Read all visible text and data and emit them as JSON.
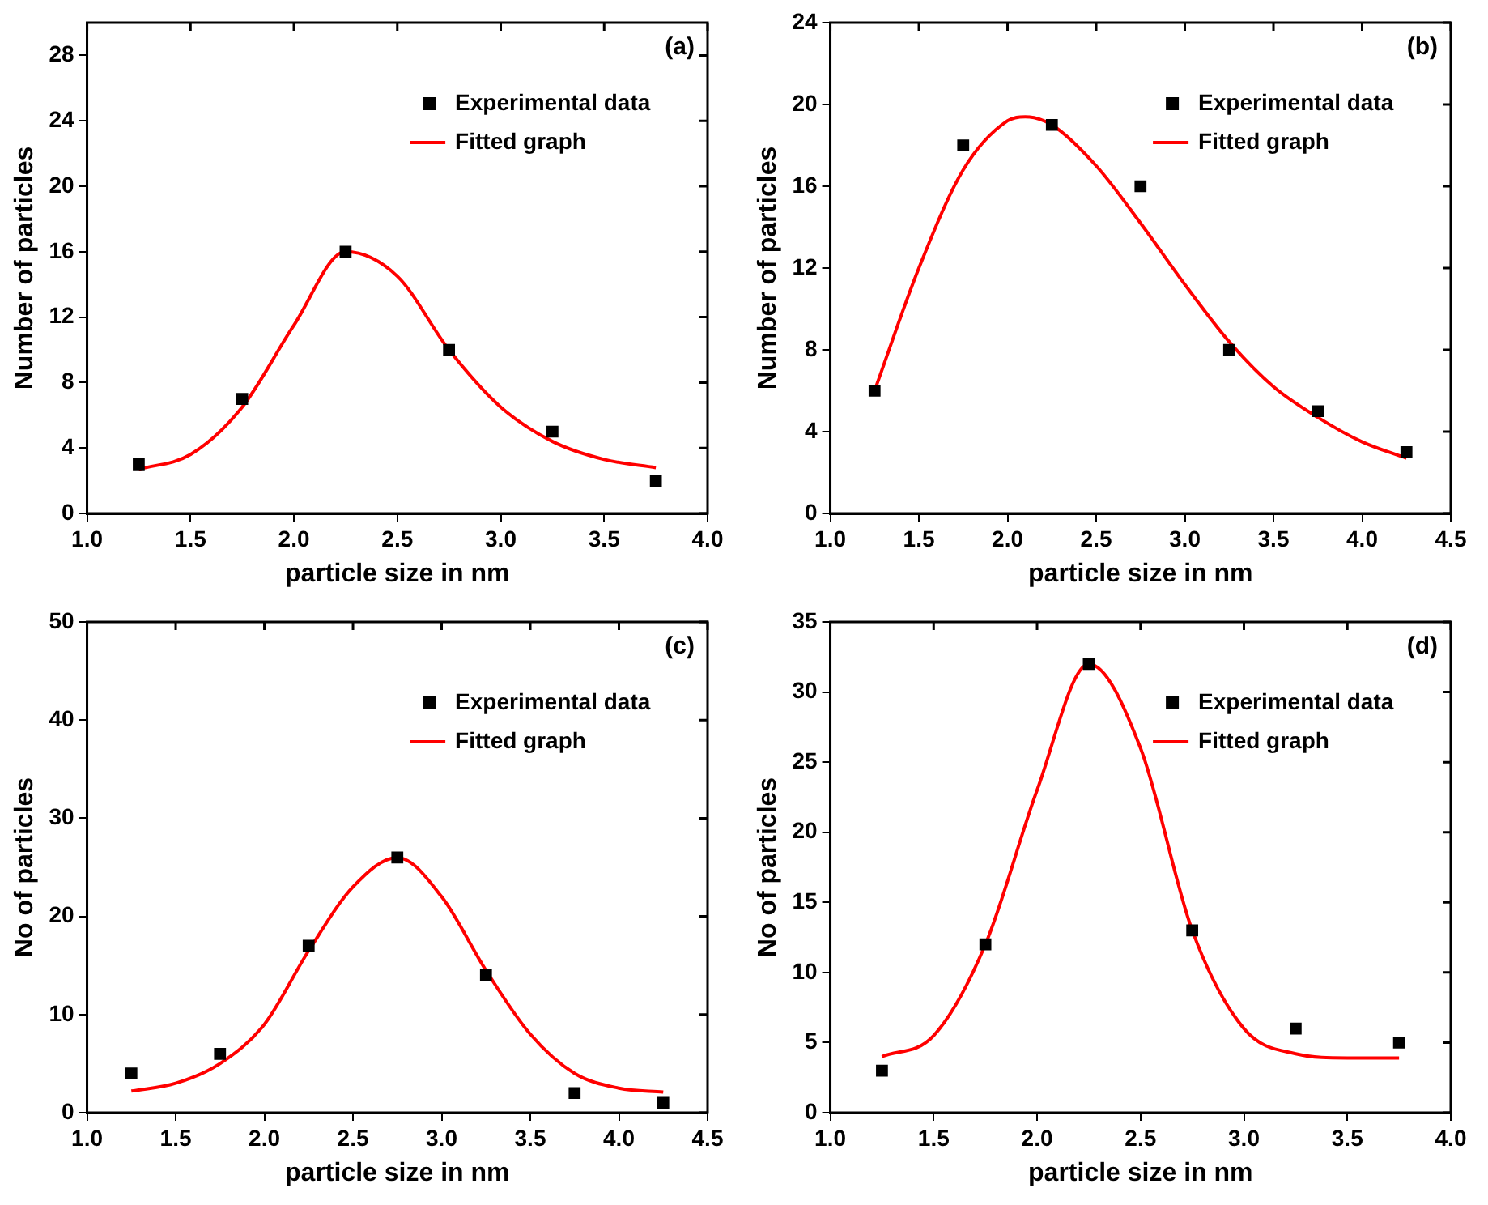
{
  "chart_data": [
    {
      "type": "scatter",
      "xlabel": "particle size in nm",
      "ylabel": "Number of particles",
      "annotations": [
        "(a)"
      ],
      "xlim": [
        1.0,
        4.0
      ],
      "xticks": [
        {
          "value": 1,
          "label": "1.0"
        },
        1.5,
        {
          "value": 2,
          "label": "2.0"
        },
        2.5,
        {
          "value": 3,
          "label": "3.0"
        },
        3.5,
        {
          "value": 4,
          "label": "4.0"
        }
      ],
      "ylim": [
        0,
        30
      ],
      "yticks": [
        0,
        4,
        8,
        12,
        16,
        20,
        24,
        28
      ],
      "legend": "top right",
      "grid": false,
      "series": [
        {
          "name": "Experimental data",
          "type": "scatter",
          "marker": "square",
          "color": "#000000",
          "x": [
            1.25,
            1.75,
            2.25,
            2.75,
            3.25,
            3.75
          ],
          "values": [
            3,
            7,
            16,
            10,
            5,
            2
          ]
        },
        {
          "name": "Fitted graph",
          "type": "line",
          "marker": "none",
          "color": "#ff0000",
          "x": [
            1.25,
            1.5,
            1.75,
            2.0,
            2.25,
            2.5,
            2.75,
            3.0,
            3.25,
            3.5,
            3.75
          ],
          "values": [
            2.7,
            3.6,
            6.5,
            11.5,
            16,
            14.5,
            10,
            6.5,
            4.4,
            3.3,
            2.8
          ]
        }
      ]
    },
    {
      "type": "scatter",
      "xlabel": "particle size in nm",
      "ylabel": "Number of particles",
      "annotations": [
        "(b)"
      ],
      "xlim": [
        1.0,
        4.5
      ],
      "xticks": [
        {
          "value": 1,
          "label": "1.0"
        },
        1.5,
        {
          "value": 2,
          "label": "2.0"
        },
        2.5,
        {
          "value": 3,
          "label": "3.0"
        },
        3.5,
        {
          "value": 4,
          "label": "4.0"
        },
        4.5
      ],
      "ylim": [
        0,
        24
      ],
      "yticks": [
        0,
        4,
        8,
        12,
        16,
        20,
        24
      ],
      "legend": "top right",
      "grid": false,
      "series": [
        {
          "name": "Experimental data",
          "type": "scatter",
          "marker": "square",
          "color": "#000000",
          "x": [
            1.25,
            1.75,
            2.25,
            2.75,
            3.25,
            3.75,
            4.25
          ],
          "values": [
            6,
            18,
            19,
            16,
            8,
            5,
            3
          ]
        },
        {
          "name": "Fitted graph",
          "type": "line",
          "marker": "none",
          "color": "#ff0000",
          "x": [
            1.25,
            1.5,
            1.75,
            2.0,
            2.1,
            2.25,
            2.5,
            2.75,
            3.0,
            3.25,
            3.5,
            3.75,
            4.0,
            4.25
          ],
          "values": [
            6,
            12,
            16.8,
            19.2,
            19.4,
            19,
            17,
            14.2,
            11.2,
            8.4,
            6.2,
            4.7,
            3.5,
            2.7
          ]
        }
      ]
    },
    {
      "type": "scatter",
      "xlabel": "particle size in nm",
      "ylabel": "No of particles",
      "annotations": [
        "(c)"
      ],
      "xlim": [
        1.0,
        4.5
      ],
      "xticks": [
        {
          "value": 1,
          "label": "1.0"
        },
        1.5,
        {
          "value": 2,
          "label": "2.0"
        },
        2.5,
        {
          "value": 3,
          "label": "3.0"
        },
        3.5,
        {
          "value": 4,
          "label": "4.0"
        },
        4.5
      ],
      "ylim": [
        0,
        50
      ],
      "yticks": [
        0,
        10,
        20,
        30,
        40,
        50
      ],
      "legend": "top right",
      "grid": false,
      "series": [
        {
          "name": "Experimental data",
          "type": "scatter",
          "marker": "square",
          "color": "#000000",
          "x": [
            1.25,
            1.75,
            2.25,
            2.75,
            3.25,
            3.75,
            4.25
          ],
          "values": [
            4,
            6,
            17,
            26,
            14,
            2,
            1
          ]
        },
        {
          "name": "Fitted graph",
          "type": "line",
          "marker": "none",
          "color": "#ff0000",
          "x": [
            1.25,
            1.5,
            1.75,
            2.0,
            2.25,
            2.5,
            2.75,
            3.0,
            3.25,
            3.5,
            3.75,
            4.0,
            4.25
          ],
          "values": [
            2.2,
            3,
            5,
            9,
            16.5,
            23,
            26,
            22,
            14.5,
            8,
            4,
            2.5,
            2.1
          ]
        }
      ]
    },
    {
      "type": "scatter",
      "xlabel": "particle size in nm",
      "ylabel": "No of particles",
      "annotations": [
        "(d)"
      ],
      "xlim": [
        1.0,
        4.0
      ],
      "xticks": [
        {
          "value": 1,
          "label": "1.0"
        },
        1.5,
        {
          "value": 2,
          "label": "2.0"
        },
        2.5,
        {
          "value": 3,
          "label": "3.0"
        },
        3.5,
        {
          "value": 4,
          "label": "4.0"
        }
      ],
      "ylim": [
        0,
        35
      ],
      "yticks": [
        0,
        5,
        10,
        15,
        20,
        25,
        30,
        35
      ],
      "legend": "top right",
      "grid": false,
      "series": [
        {
          "name": "Experimental data",
          "type": "scatter",
          "marker": "square",
          "color": "#000000",
          "x": [
            1.25,
            1.75,
            2.25,
            2.75,
            3.25,
            3.75
          ],
          "values": [
            3,
            12,
            32,
            13,
            6,
            5
          ]
        },
        {
          "name": "Fitted graph",
          "type": "line",
          "marker": "none",
          "color": "#ff0000",
          "x": [
            1.25,
            1.5,
            1.75,
            2.0,
            2.25,
            2.5,
            2.75,
            3.0,
            3.25,
            3.5,
            3.75
          ],
          "values": [
            4,
            5.5,
            12,
            23,
            32,
            26,
            13,
            6,
            4.2,
            3.9,
            3.9
          ]
        }
      ]
    }
  ]
}
